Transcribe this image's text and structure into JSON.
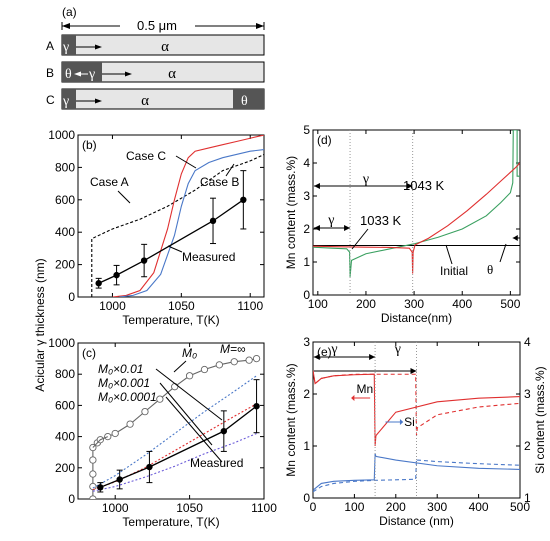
{
  "shared_ylabel": "Acicular γ thickness (nm)",
  "panel_a": {
    "label": "(a)",
    "width_label": "0.5 μm",
    "rows": [
      {
        "label": "A",
        "cells": [
          "γ",
          "α"
        ]
      },
      {
        "label": "B",
        "cells": [
          "θ",
          "γ",
          "α"
        ]
      },
      {
        "label": "C",
        "cells": [
          "γ",
          "α",
          "θ"
        ]
      }
    ]
  },
  "chart_data": [
    {
      "id": "b",
      "type": "line",
      "panel_label": "(b)",
      "xlabel": "Temperature, T(K)",
      "ylabel": "",
      "xlim": [
        975,
        1110
      ],
      "ylim": [
        0,
        1000
      ],
      "xticks": [
        1000,
        1050,
        1100
      ],
      "yticks": [
        0,
        200,
        400,
        600,
        800,
        1000
      ],
      "series": [
        {
          "name": "Case A",
          "color": "#000000",
          "dash": "3,2",
          "x": [
            985,
            985,
            1000,
            1020,
            1040,
            1060,
            1080,
            1100,
            1110
          ],
          "y": [
            0,
            360,
            420,
            480,
            560,
            660,
            780,
            840,
            880
          ]
        },
        {
          "name": "Case C",
          "color": "#e03030",
          "dash": "",
          "x": [
            1000,
            1010,
            1020,
            1030,
            1040,
            1045,
            1050,
            1055,
            1060,
            1070,
            1080,
            1090,
            1100,
            1110
          ],
          "y": [
            0,
            10,
            40,
            150,
            420,
            600,
            760,
            860,
            900,
            920,
            940,
            960,
            980,
            1000
          ]
        },
        {
          "name": "Case B",
          "color": "#4a78c8",
          "dash": "",
          "x": [
            1005,
            1015,
            1025,
            1035,
            1045,
            1050,
            1055,
            1060,
            1070,
            1080,
            1090,
            1100,
            1110
          ],
          "y": [
            0,
            10,
            40,
            140,
            380,
            560,
            700,
            780,
            830,
            860,
            880,
            900,
            910
          ]
        },
        {
          "name": "Measured",
          "color": "#000000",
          "dash": "",
          "marker": "filled",
          "x": [
            990,
            1003,
            1023,
            1073,
            1095
          ],
          "y": [
            85,
            135,
            225,
            470,
            600
          ],
          "err": [
            30,
            60,
            100,
            140,
            180
          ]
        }
      ],
      "annotations": [
        "Case C",
        "Case A",
        "Case B",
        "Measured"
      ]
    },
    {
      "id": "c",
      "type": "line",
      "panel_label": "(c)",
      "xlabel": "Temperature, T(K)",
      "ylabel": "",
      "xlim": [
        975,
        1100
      ],
      "ylim": [
        0,
        1000
      ],
      "xticks": [
        1000,
        1050,
        1100
      ],
      "yticks": [
        0,
        200,
        400,
        600,
        800,
        1000
      ],
      "series": [
        {
          "name": "M=∞",
          "color": "#666666",
          "dash": "",
          "marker": "open",
          "x": [
            985,
            985,
            985,
            985,
            985,
            988,
            990,
            995,
            1000,
            1010,
            1020,
            1030,
            1040,
            1050,
            1060,
            1070,
            1080,
            1090,
            1095
          ],
          "y": [
            0,
            80,
            160,
            250,
            330,
            360,
            380,
            400,
            420,
            480,
            560,
            640,
            720,
            790,
            830,
            860,
            880,
            890,
            900
          ]
        },
        {
          "name": "M₀",
          "color": "#666666",
          "dash": "",
          "marker": "none",
          "x": [
            985,
            988,
            990,
            995
          ],
          "y": [
            330,
            360,
            380,
            400
          ]
        },
        {
          "name": "M₀×0.01",
          "color": "#4a78c8",
          "dash": "2,2",
          "x": [
            985,
            1000,
            1020,
            1040,
            1060,
            1080,
            1095
          ],
          "y": [
            70,
            150,
            280,
            420,
            560,
            690,
            790
          ]
        },
        {
          "name": "M₀×0.001",
          "color": "#e03030",
          "dash": "2,2",
          "x": [
            985,
            1000,
            1020,
            1040,
            1060,
            1080,
            1095
          ],
          "y": [
            60,
            110,
            200,
            310,
            420,
            530,
            610
          ]
        },
        {
          "name": "M₀×0.0001",
          "color": "#6a5ad8",
          "dash": "2,2",
          "x": [
            985,
            1000,
            1020,
            1040,
            1060,
            1080,
            1095
          ],
          "y": [
            50,
            80,
            140,
            210,
            290,
            360,
            420
          ]
        },
        {
          "name": "Measured",
          "color": "#000000",
          "dash": "",
          "marker": "filled",
          "x": [
            990,
            1003,
            1023,
            1073,
            1095
          ],
          "y": [
            75,
            125,
            205,
            435,
            595
          ],
          "err": [
            30,
            60,
            100,
            130,
            170
          ]
        }
      ],
      "annotations": [
        "M₀",
        "M=∞",
        "M₀×0.01",
        "M₀×0.001",
        "M₀×0.0001",
        "Measured"
      ]
    },
    {
      "id": "d",
      "type": "line",
      "panel_label": "(d)",
      "xlabel": "Distance(nm)",
      "ylabel": "Mn content (mass.%)",
      "xlim": [
        90,
        520
      ],
      "ylim": [
        0,
        5
      ],
      "xticks": [
        100,
        200,
        300,
        400,
        500
      ],
      "yticks": [
        0,
        1,
        2,
        3,
        4,
        5
      ],
      "series": [
        {
          "name": "Initial",
          "color": "#000000",
          "dash": "",
          "x": [
            90,
            520
          ],
          "y": [
            1.5,
            1.5
          ]
        },
        {
          "name": "1033 K",
          "color": "#3aa060",
          "dash": "",
          "x": [
            90,
            130,
            160,
            166,
            167,
            170,
            200,
            250,
            300,
            350,
            400,
            450,
            480,
            500,
            505,
            506,
            510,
            514,
            514,
            520
          ],
          "y": [
            1.45,
            1.42,
            1.4,
            1.3,
            0.55,
            1.05,
            1.25,
            1.4,
            1.55,
            1.75,
            2.0,
            2.4,
            2.8,
            3.1,
            3.4,
            5.0,
            5.0,
            5.0,
            3.6,
            3.6
          ]
        },
        {
          "name": "1043 K",
          "color": "#e03030",
          "dash": "",
          "x": [
            90,
            150,
            200,
            250,
            290,
            296,
            297,
            298,
            302,
            330,
            370,
            410,
            450,
            480,
            510,
            520
          ],
          "y": [
            1.48,
            1.46,
            1.45,
            1.44,
            1.42,
            1.3,
            0.65,
            1.3,
            1.52,
            1.72,
            2.1,
            2.55,
            3.05,
            3.45,
            3.85,
            4.0
          ]
        }
      ],
      "annotations": [
        "γ",
        "γ",
        "1043 K",
        "1033 K",
        "Initial",
        "θ"
      ]
    },
    {
      "id": "e",
      "type": "line",
      "panel_label": "(e)",
      "xlabel": "Distance (nm)",
      "ylabel": "Mn content (mass.%)",
      "y2label": "Si content (mass.%)",
      "xlim": [
        0,
        500
      ],
      "ylim": [
        0,
        3
      ],
      "y2lim": [
        1,
        4
      ],
      "xticks": [
        0,
        100,
        200,
        300,
        400,
        500
      ],
      "yticks": [
        0,
        1,
        2,
        3
      ],
      "y2ticks": [
        1,
        2,
        3,
        4
      ],
      "series": [
        {
          "name": "Mn solid",
          "color": "#e03030",
          "dash": "",
          "axis": "left",
          "x": [
            0,
            5,
            20,
            50,
            100,
            148,
            150,
            152,
            200,
            300,
            400,
            500
          ],
          "y": [
            2.45,
            2.2,
            2.3,
            2.35,
            2.37,
            2.38,
            1.0,
            1.2,
            1.65,
            1.85,
            1.92,
            1.95
          ]
        },
        {
          "name": "Mn dashed",
          "color": "#e03030",
          "dash": "4,3",
          "axis": "left",
          "x": [
            0,
            5,
            20,
            50,
            100,
            150,
            200,
            248,
            250,
            252,
            300,
            400,
            500
          ],
          "y": [
            2.45,
            2.2,
            2.3,
            2.35,
            2.38,
            2.38,
            2.38,
            2.38,
            1.2,
            1.35,
            1.6,
            1.75,
            1.82
          ]
        },
        {
          "name": "Si solid",
          "color": "#4a78c8",
          "dash": "",
          "axis": "left",
          "x": [
            0,
            20,
            50,
            100,
            148,
            150,
            152,
            200,
            300,
            400,
            500
          ],
          "y": [
            0.15,
            0.28,
            0.32,
            0.34,
            0.35,
            0.85,
            0.8,
            0.73,
            0.62,
            0.57,
            0.55
          ]
        },
        {
          "name": "Si dashed",
          "color": "#4a78c8",
          "dash": "4,3",
          "axis": "left",
          "x": [
            0,
            20,
            50,
            100,
            150,
            200,
            248,
            250,
            252,
            300,
            400,
            500
          ],
          "y": [
            0.12,
            0.22,
            0.28,
            0.32,
            0.34,
            0.35,
            0.36,
            0.75,
            0.73,
            0.7,
            0.66,
            0.63
          ]
        }
      ],
      "annotations": [
        "γ",
        "γ",
        "Mn",
        "Si"
      ]
    }
  ]
}
